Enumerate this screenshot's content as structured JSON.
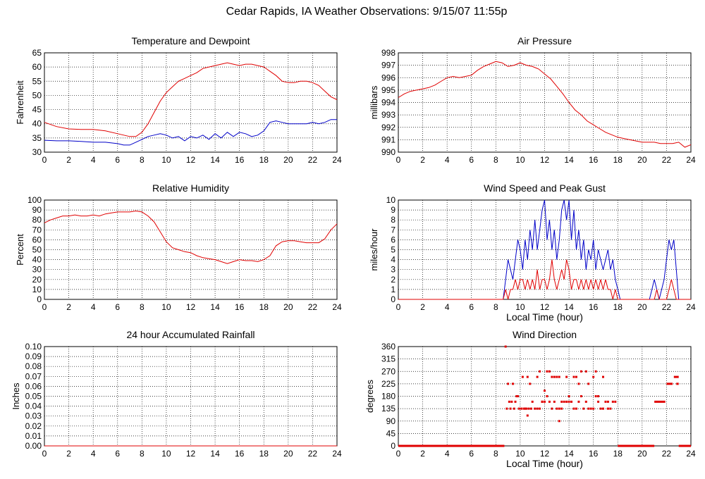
{
  "page": {
    "title": "Cedar Rapids, IA Weather Observations: 9/15/07 11:55p"
  },
  "colors": {
    "red": "#e00000",
    "blue": "#0000c8",
    "grid": "#000000",
    "axis": "#000000"
  },
  "chart_data": [
    {
      "id": "temp",
      "type": "line",
      "title": "Temperature and Dewpoint",
      "xlabel": "",
      "ylabel": "Fahrenheit",
      "xlim": [
        0,
        24
      ],
      "ylim": [
        30,
        65
      ],
      "xticks": [
        0,
        2,
        4,
        6,
        8,
        10,
        12,
        14,
        16,
        18,
        20,
        22,
        24
      ],
      "yticks": [
        30,
        35,
        40,
        45,
        50,
        55,
        60,
        65
      ],
      "grid": true,
      "series": [
        {
          "name": "",
          "color": "red",
          "x": [
            0,
            1,
            2,
            3,
            4,
            5,
            6,
            7,
            7.5,
            8,
            8.5,
            9,
            9.5,
            10,
            10.5,
            11,
            11.5,
            12,
            12.5,
            13,
            13.5,
            14,
            14.5,
            15,
            15.5,
            16,
            16.5,
            17,
            17.5,
            18,
            18.5,
            19,
            19.5,
            20,
            20.5,
            21,
            21.5,
            22,
            22.5,
            23,
            23.5,
            24
          ],
          "y": [
            40.5,
            39,
            38.2,
            38,
            38,
            37.5,
            36.5,
            35.5,
            35.5,
            37,
            40,
            44,
            48,
            51,
            53,
            55,
            56,
            57,
            58,
            59.5,
            60,
            60.5,
            61,
            61.5,
            61,
            60.5,
            61,
            61,
            60.5,
            60,
            58.5,
            57,
            55,
            54.5,
            54.5,
            55,
            55,
            54.5,
            53.5,
            51.5,
            49.5,
            48.5
          ]
        },
        {
          "name": "",
          "color": "blue",
          "x": [
            0,
            1,
            2,
            3,
            4,
            5,
            6,
            6.5,
            7,
            7.5,
            8,
            8.5,
            9,
            9.5,
            10,
            10.5,
            11,
            11.5,
            12,
            12.5,
            13,
            13.5,
            14,
            14.5,
            15,
            15.5,
            16,
            16.5,
            17,
            17.5,
            18,
            18.5,
            19,
            19.5,
            20,
            20.5,
            21,
            21.5,
            22,
            22.5,
            23,
            23.5,
            24
          ],
          "y": [
            34.2,
            34,
            34,
            33.8,
            33.5,
            33.5,
            33,
            32.5,
            32.5,
            33.5,
            34.5,
            35.5,
            36,
            36.5,
            36,
            35,
            35.5,
            34,
            35.5,
            35,
            36,
            34.5,
            36.5,
            35,
            37,
            35.5,
            37,
            36.5,
            35.5,
            36,
            37.5,
            40.5,
            41,
            40.5,
            40,
            40,
            40,
            40,
            40.5,
            40,
            40.5,
            41.5,
            41.5
          ]
        }
      ]
    },
    {
      "id": "pressure",
      "type": "line",
      "title": "Air Pressure",
      "xlabel": "",
      "ylabel": "millibars",
      "xlim": [
        0,
        24
      ],
      "ylim": [
        990,
        998
      ],
      "xticks": [
        0,
        2,
        4,
        6,
        8,
        10,
        12,
        14,
        16,
        18,
        20,
        22,
        24
      ],
      "yticks": [
        990,
        991,
        992,
        993,
        994,
        995,
        996,
        997,
        998
      ],
      "grid": true,
      "series": [
        {
          "name": "",
          "color": "red",
          "x": [
            0,
            0.5,
            1,
            1.5,
            2,
            2.5,
            3,
            3.5,
            4,
            4.5,
            5,
            5.5,
            6,
            6.5,
            7,
            7.5,
            8,
            8.5,
            9,
            9.5,
            10,
            10.5,
            11,
            11.5,
            12,
            12.5,
            13,
            13.5,
            14,
            14.5,
            15,
            15.5,
            16,
            16.5,
            17,
            17.5,
            18,
            18.5,
            19,
            19.5,
            20,
            20.5,
            21,
            21.5,
            22,
            22.5,
            23,
            23.5,
            24
          ],
          "y": [
            994.4,
            994.7,
            994.9,
            995.0,
            995.1,
            995.2,
            995.4,
            995.7,
            996.0,
            996.1,
            996.0,
            996.1,
            996.2,
            996.6,
            996.9,
            997.1,
            997.3,
            997.2,
            996.9,
            997.0,
            997.2,
            997.0,
            996.9,
            996.7,
            996.3,
            995.9,
            995.3,
            994.7,
            994.0,
            993.4,
            993.0,
            992.5,
            992.2,
            991.9,
            991.6,
            991.4,
            991.2,
            991.1,
            991.0,
            990.9,
            990.8,
            990.8,
            990.8,
            990.7,
            990.7,
            990.7,
            990.8,
            990.4,
            990.6
          ]
        }
      ]
    },
    {
      "id": "rh",
      "type": "line",
      "title": "Relative Humidity",
      "xlabel": "",
      "ylabel": "Percent",
      "xlim": [
        0,
        24
      ],
      "ylim": [
        0,
        100
      ],
      "xticks": [
        0,
        2,
        4,
        6,
        8,
        10,
        12,
        14,
        16,
        18,
        20,
        22,
        24
      ],
      "yticks": [
        0,
        10,
        20,
        30,
        40,
        50,
        60,
        70,
        80,
        90,
        100
      ],
      "grid": true,
      "series": [
        {
          "name": "",
          "color": "red",
          "x": [
            0,
            0.5,
            1,
            1.5,
            2,
            2.5,
            3,
            3.5,
            4,
            4.5,
            5,
            5.5,
            6,
            6.5,
            7,
            7.5,
            8,
            8.5,
            9,
            9.5,
            10,
            10.5,
            11,
            11.5,
            12,
            12.5,
            13,
            13.5,
            14,
            14.5,
            15,
            15.5,
            16,
            16.5,
            17,
            17.5,
            18,
            18.5,
            19,
            19.5,
            20,
            20.5,
            21,
            21.5,
            22,
            22.5,
            23,
            23.5,
            24
          ],
          "y": [
            77,
            80,
            82,
            84,
            84,
            85,
            84,
            84,
            85,
            84,
            86,
            87,
            88,
            88,
            88,
            89,
            88,
            84,
            78,
            68,
            58,
            52,
            50,
            48,
            47,
            44,
            42,
            41,
            40,
            38,
            36,
            38,
            40,
            39,
            39,
            38,
            40,
            44,
            54,
            58,
            59,
            59,
            58,
            57,
            57,
            57,
            61,
            70,
            76
          ]
        }
      ]
    },
    {
      "id": "wind",
      "type": "line",
      "title": "Wind Speed and Peak Gust",
      "xlabel": "Local Time (hour)",
      "ylabel": "miles/hour",
      "xlim": [
        0,
        24
      ],
      "ylim": [
        0,
        10
      ],
      "xticks": [
        0,
        2,
        4,
        6,
        8,
        10,
        12,
        14,
        16,
        18,
        20,
        22,
        24
      ],
      "yticks": [
        0,
        1,
        2,
        3,
        4,
        5,
        6,
        7,
        8,
        9,
        10
      ],
      "grid": true,
      "series": [
        {
          "name": "",
          "color": "blue",
          "x": [
            0,
            8.6,
            8.8,
            9.0,
            9.2,
            9.4,
            9.6,
            9.8,
            10.0,
            10.2,
            10.4,
            10.6,
            10.8,
            11.0,
            11.2,
            11.4,
            11.6,
            11.8,
            12.0,
            12.2,
            12.4,
            12.6,
            12.8,
            13.0,
            13.2,
            13.4,
            13.6,
            13.8,
            14.0,
            14.2,
            14.4,
            14.6,
            14.8,
            15.0,
            15.2,
            15.4,
            15.6,
            15.8,
            16.0,
            16.2,
            16.4,
            16.6,
            16.8,
            17.0,
            17.2,
            17.4,
            17.6,
            17.8,
            18.0,
            18.2,
            20.6,
            20.8,
            21.0,
            21.2,
            21.4,
            21.6,
            21.8,
            22.0,
            22.2,
            22.4,
            22.6,
            22.8,
            23.0,
            24
          ],
          "y": [
            0,
            0,
            2,
            4,
            3,
            2,
            4,
            6,
            5,
            3,
            6,
            4,
            7,
            5,
            8,
            5,
            7,
            9,
            10,
            6,
            8,
            5,
            7,
            4,
            6,
            9,
            10,
            8,
            10,
            6,
            9,
            5,
            7,
            4,
            6,
            3,
            5,
            4,
            6,
            3,
            5,
            4,
            3,
            4,
            5,
            3,
            4,
            2,
            1,
            0,
            0,
            1,
            2,
            1,
            0,
            1,
            2,
            4,
            6,
            5,
            6,
            3,
            0,
            0
          ]
        },
        {
          "name": "",
          "color": "red",
          "x": [
            0,
            8.6,
            8.8,
            9.0,
            9.2,
            9.4,
            9.6,
            9.8,
            10.0,
            10.2,
            10.4,
            10.6,
            10.8,
            11.0,
            11.2,
            11.4,
            11.6,
            11.8,
            12.0,
            12.2,
            12.4,
            12.6,
            12.8,
            13.0,
            13.2,
            13.4,
            13.6,
            13.8,
            14.0,
            14.2,
            14.4,
            14.6,
            14.8,
            15.0,
            15.2,
            15.4,
            15.6,
            15.8,
            16.0,
            16.2,
            16.4,
            16.6,
            16.8,
            17.0,
            17.2,
            17.4,
            17.6,
            17.8,
            18.0,
            21.0,
            21.2,
            21.4,
            22.0,
            22.2,
            22.4,
            22.6,
            22.8,
            24
          ],
          "y": [
            0,
            0,
            1,
            0,
            1,
            1,
            2,
            1,
            2,
            2,
            1,
            2,
            1,
            2,
            1,
            3,
            1,
            2,
            2,
            1,
            2,
            4,
            2,
            1,
            2,
            3,
            2,
            4,
            3,
            1,
            2,
            2,
            1,
            2,
            1,
            2,
            1,
            2,
            1,
            2,
            1,
            2,
            1,
            2,
            1,
            1,
            0,
            1,
            0,
            0,
            1,
            0,
            0,
            1,
            2,
            1,
            0,
            0
          ]
        }
      ]
    },
    {
      "id": "rain",
      "type": "line",
      "title": "24 hour Accumulated Rainfall",
      "xlabel": "",
      "ylabel": "Inches",
      "xlim": [
        0,
        24
      ],
      "ylim": [
        0,
        0.1
      ],
      "xticks": [
        0,
        2,
        4,
        6,
        8,
        10,
        12,
        14,
        16,
        18,
        20,
        22,
        24
      ],
      "yticks": [
        "0.00",
        "0.01",
        "0.02",
        "0.03",
        "0.04",
        "0.05",
        "0.06",
        "0.07",
        "0.08",
        "0.09",
        "0.10"
      ],
      "grid": true,
      "series": [
        {
          "name": "",
          "color": "red",
          "x": [
            0,
            24
          ],
          "y": [
            0,
            0
          ]
        }
      ]
    },
    {
      "id": "winddir",
      "type": "scatter",
      "title": "Wind Direction",
      "xlabel": "Local Time (hour)",
      "ylabel": "degrees",
      "xlim": [
        0,
        24
      ],
      "ylim": [
        0,
        360
      ],
      "xticks": [
        0,
        2,
        4,
        6,
        8,
        10,
        12,
        14,
        16,
        18,
        20,
        22,
        24
      ],
      "yticks": [
        0,
        45,
        90,
        135,
        180,
        225,
        270,
        315,
        360
      ],
      "grid": true,
      "series": [
        {
          "name": "",
          "color": "red",
          "x": [
            8.8,
            8.9,
            9.1,
            9.3,
            9.5,
            9.7,
            9.9,
            10.1,
            10.3,
            10.5,
            10.7,
            10.9,
            11.0,
            11.2,
            11.4,
            11.6,
            11.8,
            12.0,
            12.2,
            12.4,
            12.6,
            12.8,
            13.0,
            13.2,
            13.4,
            13.6,
            13.8,
            14.0,
            14.2,
            14.4,
            14.6,
            14.8,
            15.0,
            15.2,
            15.4,
            15.6,
            15.8,
            16.0,
            16.2,
            16.4,
            16.6,
            16.8,
            17.0,
            17.2,
            17.4,
            17.6,
            17.8,
            9.0,
            9.4,
            9.6,
            10.2,
            10.6,
            11.4,
            12.6,
            13.0,
            13.8,
            14.4,
            15.6,
            16.8,
            10.8,
            11.6,
            12.2,
            12.4,
            12.8,
            13.2,
            14.6,
            15.0,
            15.4,
            16.0,
            16.2,
            9.2,
            9.8,
            10.4,
            11.8,
            12.0,
            13.4,
            14.0,
            14.8,
            16.4,
            17.2,
            13.2,
            10.6
          ],
          "y": [
            360,
            135,
            160,
            160,
            135,
            180,
            135,
            135,
            135,
            135,
            135,
            135,
            160,
            135,
            135,
            135,
            160,
            200,
            180,
            160,
            135,
            160,
            135,
            135,
            160,
            160,
            160,
            160,
            160,
            135,
            135,
            160,
            180,
            135,
            160,
            135,
            135,
            135,
            180,
            160,
            135,
            135,
            160,
            135,
            135,
            160,
            160,
            225,
            225,
            160,
            250,
            250,
            250,
            250,
            250,
            250,
            250,
            225,
            250,
            225,
            270,
            270,
            270,
            250,
            250,
            250,
            270,
            270,
            250,
            270,
            135,
            180,
            135,
            160,
            160,
            135,
            180,
            225,
            180,
            160,
            90,
            110
          ],
          "runs": [
            {
              "x0": 0,
              "x1": 8.7,
              "y": 0
            },
            {
              "x0": 18.0,
              "x1": 21.0,
              "y": 0
            },
            {
              "x0": 23.0,
              "x1": 24,
              "y": 0
            },
            {
              "x0": 21.0,
              "x1": 21.9,
              "y": 160
            },
            {
              "x0": 22.0,
              "x1": 22.5,
              "y": 225
            },
            {
              "x0": 22.6,
              "x1": 23.0,
              "y": 250
            },
            {
              "x0": 22.8,
              "x1": 23.0,
              "y": 225
            }
          ]
        }
      ]
    }
  ]
}
